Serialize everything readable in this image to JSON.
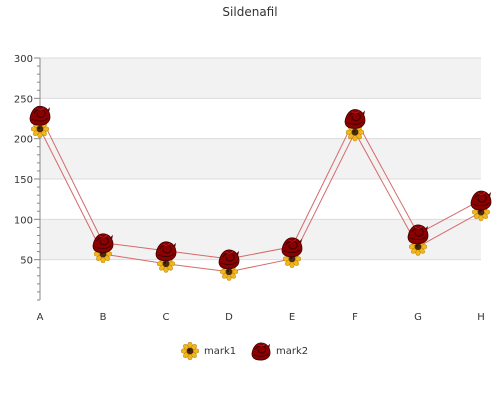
{
  "chart_data": {
    "type": "line",
    "title": "Sildenafil",
    "xlabel": "",
    "ylabel": "",
    "categories": [
      "A",
      "B",
      "C",
      "D",
      "E",
      "F",
      "G",
      "H"
    ],
    "ylim": [
      0,
      300
    ],
    "yticks": [
      50,
      100,
      150,
      200,
      250,
      300
    ],
    "grid": true,
    "legend": "bottom",
    "series": [
      {
        "name": "mark1",
        "values": [
          212,
          57,
          45,
          35,
          51,
          208,
          66,
          109
        ],
        "marker": "sunflower-icon",
        "color": "#d66a6a"
      },
      {
        "name": "mark2",
        "values": [
          229,
          71,
          61,
          51,
          66,
          225,
          82,
          124
        ],
        "marker": "rose-icon",
        "color": "#d66a6a"
      }
    ]
  }
}
